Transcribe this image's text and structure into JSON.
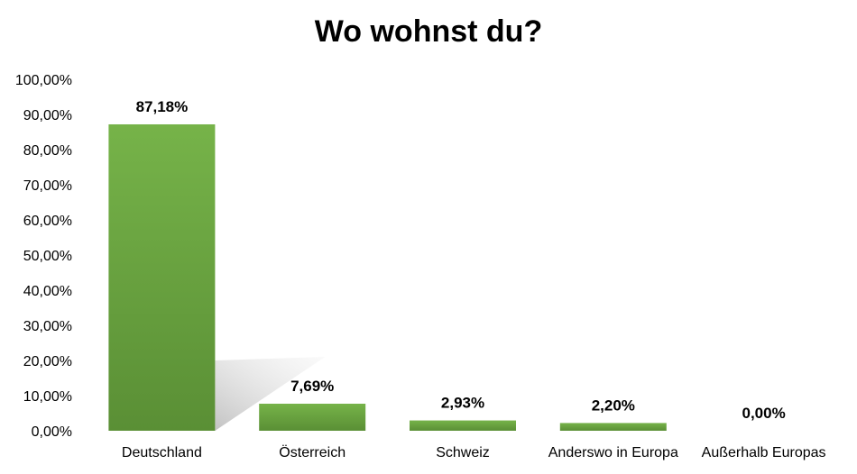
{
  "chart_data": {
    "type": "bar",
    "title": "Wo wohnst du?",
    "categories": [
      "Deutschland",
      "Österreich",
      "Schweiz",
      "Anderswo in Europa",
      "Außerhalb Europas"
    ],
    "values": [
      87.18,
      7.69,
      2.93,
      2.2,
      0.0
    ],
    "data_labels": [
      "87,18%",
      "7,69%",
      "2,93%",
      "2,20%",
      "0,00%"
    ],
    "y_ticks": [
      0,
      10,
      20,
      30,
      40,
      50,
      60,
      70,
      80,
      90,
      100
    ],
    "y_tick_labels": [
      "0,00%",
      "10,00%",
      "20,00%",
      "30,00%",
      "40,00%",
      "50,00%",
      "60,00%",
      "70,00%",
      "80,00%",
      "90,00%",
      "100,00%"
    ],
    "ylim": [
      0,
      100
    ],
    "xlabel": "",
    "ylabel": "",
    "grid": false,
    "legend": "none",
    "bar_color_top": "#76b349",
    "bar_color_bottom": "#5a8f35"
  }
}
